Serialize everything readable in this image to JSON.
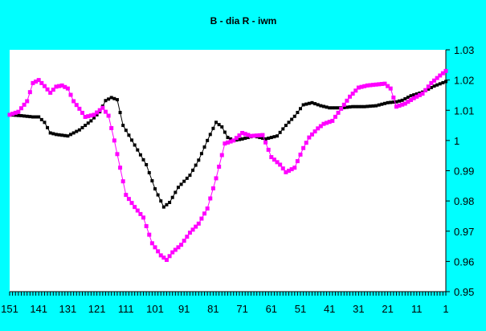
{
  "chart_data": {
    "type": "line",
    "title": "B - dia   R - iwm",
    "xlabel": "",
    "ylabel": "",
    "x_axis": {
      "reversed": true,
      "min": 1,
      "max": 151,
      "tick_labels": [
        "151",
        "141",
        "131",
        "121",
        "111",
        "101",
        "91",
        "81",
        "71",
        "61",
        "51",
        "41",
        "31",
        "21",
        "11",
        "1"
      ],
      "tick_values": [
        151,
        141,
        131,
        121,
        111,
        101,
        91,
        81,
        71,
        61,
        51,
        41,
        31,
        21,
        11,
        1
      ]
    },
    "y_axis": {
      "position": "right",
      "ylim": [
        0.95,
        1.03
      ],
      "tick_labels": [
        "1.03",
        "1.02",
        "1.01",
        "1",
        "0.99",
        "0.98",
        "0.97",
        "0.96",
        "0.95"
      ],
      "tick_values": [
        1.03,
        1.02,
        1.01,
        1.0,
        0.99,
        0.98,
        0.97,
        0.96,
        0.95
      ]
    },
    "grid": false,
    "legend": "none",
    "colors": {
      "background": "#00FFFF",
      "plot_area": "#FFFFFF",
      "dia": "#000000",
      "iwm": "#FF00FF"
    },
    "series": [
      {
        "key": "dia",
        "color": "#000000",
        "points": [
          [
            151,
            1.0085
          ],
          [
            147,
            1.0082
          ],
          [
            143,
            1.0078
          ],
          [
            141,
            1.0078
          ],
          [
            139,
            1.006
          ],
          [
            137,
            1.0025
          ],
          [
            135,
            1.002
          ],
          [
            131,
            1.0015
          ],
          [
            127,
            1.0035
          ],
          [
            123,
            1.0065
          ],
          [
            120,
            1.0095
          ],
          [
            118,
            1.0132
          ],
          [
            116,
            1.0142
          ],
          [
            114,
            1.0135
          ],
          [
            112,
            1.005
          ],
          [
            108,
            0.9985
          ],
          [
            104,
            0.992
          ],
          [
            101,
            0.984
          ],
          [
            98,
            0.978
          ],
          [
            96,
            0.9795
          ],
          [
            93,
            0.9845
          ],
          [
            89,
            0.9885
          ],
          [
            86,
            0.9935
          ],
          [
            83,
            1.0
          ],
          [
            80,
            1.006
          ],
          [
            78,
            1.0045
          ],
          [
            76,
            1.001
          ],
          [
            74,
            1.0
          ],
          [
            71,
            1.0005
          ],
          [
            67,
            1.0015
          ],
          [
            63,
            1.0005
          ],
          [
            59,
            1.0015
          ],
          [
            56,
            1.005
          ],
          [
            53,
            1.008
          ],
          [
            50,
            1.0118
          ],
          [
            47,
            1.0125
          ],
          [
            44,
            1.0115
          ],
          [
            41,
            1.0108
          ],
          [
            37,
            1.0108
          ],
          [
            33,
            1.0112
          ],
          [
            29,
            1.0112
          ],
          [
            25,
            1.0115
          ],
          [
            21,
            1.0125
          ],
          [
            18,
            1.0128
          ],
          [
            16,
            1.0133
          ],
          [
            13,
            1.0148
          ],
          [
            9,
            1.016
          ],
          [
            5,
            1.018
          ],
          [
            1,
            1.0195
          ]
        ]
      },
      {
        "key": "iwm",
        "color": "#FF00FF",
        "points": [
          [
            151,
            1.0085
          ],
          [
            148,
            1.0095
          ],
          [
            145,
            1.013
          ],
          [
            143,
            1.019
          ],
          [
            141,
            1.02
          ],
          [
            139,
            1.018
          ],
          [
            137,
            1.0158
          ],
          [
            135,
            1.0178
          ],
          [
            133,
            1.0182
          ],
          [
            131,
            1.0172
          ],
          [
            129,
            1.013
          ],
          [
            127,
            1.0105
          ],
          [
            125,
            1.0078
          ],
          [
            122,
            1.0085
          ],
          [
            119,
            1.0108
          ],
          [
            117,
            1.0082
          ],
          [
            115,
            1.0
          ],
          [
            113,
            0.991
          ],
          [
            111,
            0.982
          ],
          [
            108,
            0.978
          ],
          [
            105,
            0.9745
          ],
          [
            102,
            0.966
          ],
          [
            99,
            0.962
          ],
          [
            97,
            0.9605
          ],
          [
            95,
            0.963
          ],
          [
            92,
            0.9655
          ],
          [
            89,
            0.9695
          ],
          [
            86,
            0.9725
          ],
          [
            83,
            0.9775
          ],
          [
            80,
            0.9875
          ],
          [
            77,
            0.999
          ],
          [
            74,
            1.0
          ],
          [
            71,
            1.0025
          ],
          [
            68,
            1.0015
          ],
          [
            64,
            1.0018
          ],
          [
            61,
            0.9945
          ],
          [
            58,
            0.992
          ],
          [
            56,
            0.9895
          ],
          [
            53,
            0.991
          ],
          [
            50,
            0.9975
          ],
          [
            48,
            1.001
          ],
          [
            45,
            1.004
          ],
          [
            43,
            1.0055
          ],
          [
            40,
            1.0065
          ],
          [
            37,
            1.0105
          ],
          [
            34,
            1.0145
          ],
          [
            31,
            1.0175
          ],
          [
            28,
            1.0182
          ],
          [
            25,
            1.0185
          ],
          [
            22,
            1.0188
          ],
          [
            20,
            1.0172
          ],
          [
            18,
            1.0112
          ],
          [
            15,
            1.0122
          ],
          [
            12,
            1.014
          ],
          [
            9,
            1.0155
          ],
          [
            6,
            1.019
          ],
          [
            3,
            1.0215
          ],
          [
            1,
            1.023
          ]
        ]
      }
    ]
  }
}
